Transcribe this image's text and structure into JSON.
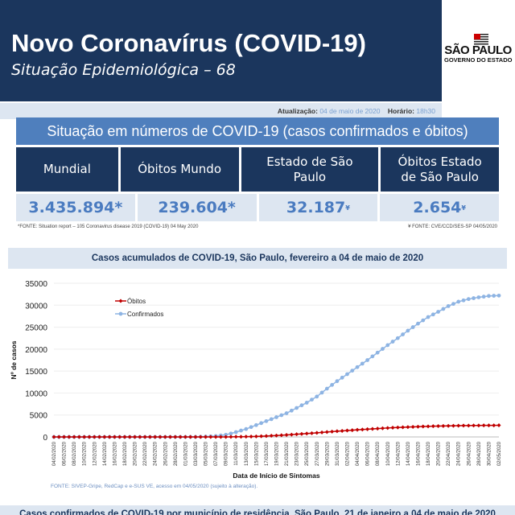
{
  "header": {
    "title": "Novo Coronavírus (COVID-19)",
    "subtitle": "Situação Epidemiológica – 68",
    "logo": {
      "line1": "SÃO PAULO",
      "line2": "GOVERNO DO ESTADO"
    },
    "update_label": "Atualização:",
    "update_value": "04 de maio de 2020",
    "time_label": "Horário:",
    "time_value": "18h30"
  },
  "summary": {
    "title": "Situação em números de COVID-19 (casos confirmados e óbitos)",
    "columns": [
      {
        "label": "Mundial",
        "value": "3.435.894*",
        "mark": ""
      },
      {
        "label": "Óbitos Mundo",
        "value": "239.604*",
        "mark": ""
      },
      {
        "label": "Estado de São Paulo",
        "value": "32.187",
        "mark": "¥"
      },
      {
        "label": "Óbitos Estado de São Paulo",
        "value": "2.654",
        "mark": "¥"
      }
    ],
    "footnote_left": "*FONTE: Situation report – 105 Coronavirus disease 2019 (COVID-19)  04 May 2020",
    "footnote_right": "¥ FONTE: CVE/CCD/SES-SP 04/05/2020"
  },
  "chart_title": "Casos acumulados de COVID-19, São Paulo, fevereiro a 04 de maio de 2020",
  "chart_source": "FONTE: SIVEP-Gripe, RedCap e e-SUS VE, acesso em 04/05/2020 (sujeito à alteração).",
  "bottom_title": "Casos confirmados de COVID-19 por município de residência, São Paulo, 21 de janeiro a 04 de maio de 2020",
  "chart_data": {
    "type": "line",
    "xlabel": "Data de Início de Sintomas",
    "ylabel": "Nº de casos",
    "ylim": [
      0,
      35000
    ],
    "yticks": [
      0,
      5000,
      10000,
      15000,
      20000,
      25000,
      30000,
      35000
    ],
    "grid": true,
    "legend": "top-left",
    "x": [
      "04/02/2020",
      "05/02/2020",
      "06/02/2020",
      "07/02/2020",
      "08/02/2020",
      "09/02/2020",
      "10/02/2020",
      "11/02/2020",
      "12/02/2020",
      "13/02/2020",
      "14/02/2020",
      "15/02/2020",
      "16/02/2020",
      "17/02/2020",
      "18/02/2020",
      "19/02/2020",
      "20/02/2020",
      "21/02/2020",
      "22/02/2020",
      "23/02/2020",
      "24/02/2020",
      "25/02/2020",
      "26/02/2020",
      "27/02/2020",
      "28/02/2020",
      "29/02/2020",
      "01/03/2020",
      "02/03/2020",
      "03/03/2020",
      "04/03/2020",
      "05/03/2020",
      "06/03/2020",
      "07/03/2020",
      "08/03/2020",
      "09/03/2020",
      "10/03/2020",
      "11/03/2020",
      "12/03/2020",
      "13/03/2020",
      "14/03/2020",
      "15/03/2020",
      "16/03/2020",
      "17/03/2020",
      "18/03/2020",
      "19/03/2020",
      "20/03/2020",
      "21/03/2020",
      "22/03/2020",
      "23/03/2020",
      "24/03/2020",
      "25/03/2020",
      "26/03/2020",
      "27/03/2020",
      "28/03/2020",
      "29/03/2020",
      "30/03/2020",
      "31/03/2020",
      "01/04/2020",
      "02/04/2020",
      "03/04/2020",
      "04/04/2020",
      "05/04/2020",
      "06/04/2020",
      "07/04/2020",
      "08/04/2020",
      "09/04/2020",
      "10/04/2020",
      "11/04/2020",
      "12/04/2020",
      "13/04/2020",
      "14/04/2020",
      "15/04/2020",
      "16/04/2020",
      "17/04/2020",
      "18/04/2020",
      "19/04/2020",
      "20/04/2020",
      "21/04/2020",
      "22/04/2020",
      "23/04/2020",
      "24/04/2020",
      "25/04/2020",
      "26/04/2020",
      "27/04/2020",
      "28/04/2020",
      "29/04/2020",
      "30/04/2020",
      "01/05/2020",
      "02/05/2020"
    ],
    "series": [
      {
        "name": "Óbitos",
        "color": "#c00000",
        "values": [
          0,
          0,
          0,
          0,
          0,
          0,
          0,
          0,
          0,
          0,
          0,
          0,
          0,
          0,
          0,
          0,
          0,
          0,
          0,
          0,
          0,
          0,
          0,
          0,
          0,
          0,
          0,
          0,
          0,
          0,
          0,
          0,
          2,
          5,
          10,
          20,
          35,
          55,
          75,
          100,
          125,
          150,
          210,
          270,
          330,
          390,
          450,
          530,
          610,
          690,
          770,
          850,
          940,
          1030,
          1120,
          1210,
          1300,
          1380,
          1460,
          1540,
          1620,
          1700,
          1770,
          1840,
          1910,
          1980,
          2050,
          2100,
          2150,
          2200,
          2250,
          2300,
          2340,
          2375,
          2410,
          2445,
          2480,
          2500,
          2520,
          2540,
          2560,
          2580,
          2595,
          2605,
          2615,
          2625,
          2635,
          2645,
          2654
        ]
      },
      {
        "name": "Confirmados",
        "color": "#8eb4e3",
        "values": [
          0,
          0,
          0,
          0,
          0,
          0,
          0,
          0,
          0,
          0,
          0,
          0,
          0,
          0,
          0,
          0,
          0,
          0,
          0,
          0,
          0,
          1,
          1,
          2,
          2,
          3,
          6,
          12,
          20,
          45,
          80,
          140,
          200,
          330,
          500,
          780,
          1100,
          1450,
          1800,
          2250,
          2700,
          3150,
          3600,
          4050,
          4500,
          4950,
          5400,
          6000,
          6600,
          7200,
          7800,
          8500,
          9200,
          10100,
          11000,
          11850,
          12700,
          13500,
          14300,
          15100,
          15900,
          16700,
          17500,
          18350,
          19200,
          20050,
          20900,
          21700,
          22500,
          23350,
          24200,
          25000,
          25800,
          26550,
          27300,
          27900,
          28500,
          29150,
          29800,
          30300,
          30800,
          31100,
          31400,
          31600,
          31800,
          31950,
          32100,
          32150,
          32187
        ]
      }
    ]
  }
}
